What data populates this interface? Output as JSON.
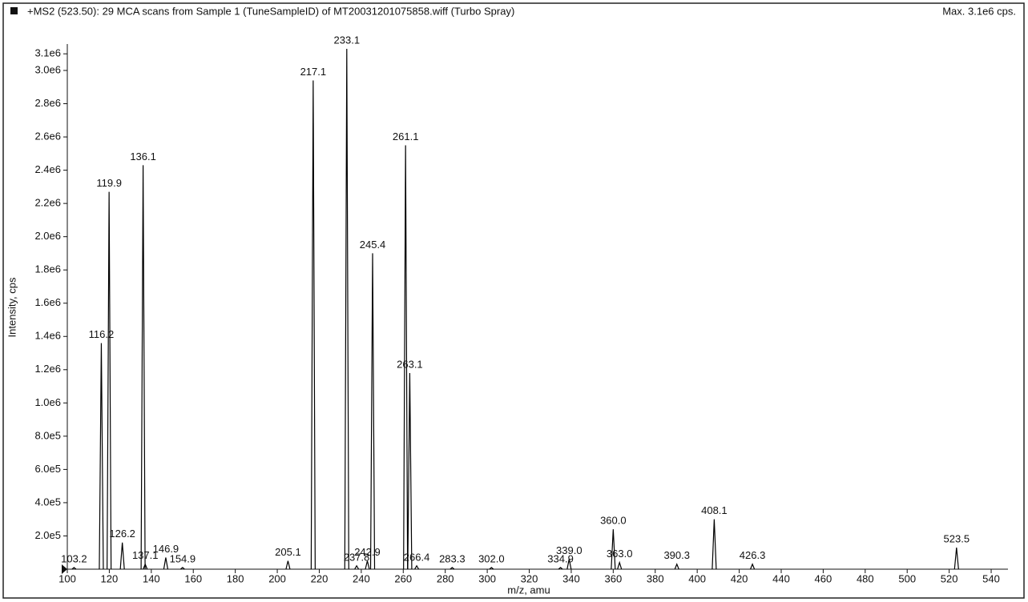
{
  "chart_data": {
    "type": "spectrum",
    "title": "+MS2 (523.50): 29 MCA scans from Sample 1 (TuneSampleID) of MT20031201075858.wiff (Turbo Spray)",
    "max_label": "Max. 3.1e6 cps.",
    "x_label": "m/z, amu",
    "y_label": "Intensity, cps",
    "x": [
      103.2,
      116.2,
      119.9,
      126.2,
      136.1,
      137.1,
      146.9,
      154.9,
      205.1,
      217.1,
      233.1,
      237.8,
      242.9,
      245.4,
      261.1,
      263.1,
      266.4,
      283.3,
      302.0,
      334.9,
      339.0,
      360.0,
      363.0,
      390.3,
      408.1,
      426.3,
      523.5
    ],
    "x_labels": [
      "103.2",
      "116.2",
      "119.9",
      "126.2",
      "136.1",
      "137.1",
      "146.9",
      "154.9",
      "205.1",
      "217.1",
      "233.1",
      "237.8",
      "242.9",
      "245.4",
      "261.1",
      "263.1",
      "266.4",
      "283.3",
      "302.0",
      "334.9",
      "339.0",
      "360.0",
      "363.0",
      "390.3",
      "408.1",
      "426.3",
      "523.5"
    ],
    "values": [
      10000,
      1360000,
      2270000,
      160000,
      2430000,
      30000,
      70000,
      10000,
      50000,
      2940000,
      3130000,
      20000,
      50000,
      1900000,
      2550000,
      1180000,
      20000,
      10000,
      10000,
      10000,
      60000,
      240000,
      40000,
      30000,
      300000,
      30000,
      130000
    ],
    "color": "#000000",
    "xlim": [
      100,
      548
    ],
    "ylim": [
      0,
      3130000
    ],
    "xticks": [
      100,
      120,
      140,
      160,
      180,
      200,
      220,
      240,
      260,
      280,
      300,
      320,
      340,
      360,
      380,
      400,
      420,
      440,
      460,
      480,
      500,
      520,
      540
    ],
    "yticks": [
      {
        "value": 200000,
        "label": "2.0e5"
      },
      {
        "value": 400000,
        "label": "4.0e5"
      },
      {
        "value": 600000,
        "label": "6.0e5"
      },
      {
        "value": 800000,
        "label": "8.0e5"
      },
      {
        "value": 1000000,
        "label": "1.0e6"
      },
      {
        "value": 1200000,
        "label": "1.2e6"
      },
      {
        "value": 1400000,
        "label": "1.4e6"
      },
      {
        "value": 1600000,
        "label": "1.6e6"
      },
      {
        "value": 1800000,
        "label": "1.8e6"
      },
      {
        "value": 2000000,
        "label": "2.0e6"
      },
      {
        "value": 2200000,
        "label": "2.2e6"
      },
      {
        "value": 2400000,
        "label": "2.4e6"
      },
      {
        "value": 2600000,
        "label": "2.6e6"
      },
      {
        "value": 2800000,
        "label": "2.8e6"
      },
      {
        "value": 3000000,
        "label": "3.0e6"
      },
      {
        "value": 3100000,
        "label": "3.1e6"
      }
    ],
    "grid": false
  }
}
